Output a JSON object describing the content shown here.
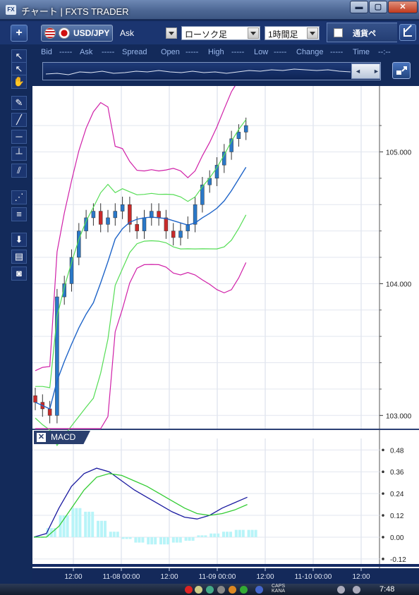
{
  "window": {
    "title": "チャート | FXTS TRADER",
    "app_icon": "FX",
    "min": "▬",
    "max": "▢",
    "close": "✕"
  },
  "toolbar": {
    "add_label": "+",
    "pair": "USD/JPY",
    "price_side": "Ask",
    "chart_type": "ローソク足",
    "interval": "1時間足",
    "currency_tab": "通貨ペ"
  },
  "quote": {
    "bid_label": "Bid",
    "bid": "-----",
    "ask_label": "Ask",
    "ask": "-----",
    "spread_label": "Spread",
    "open_label": "Open",
    "open": "-----",
    "high_label": "High",
    "high": "-----",
    "low_label": "Low",
    "low": "-----",
    "change_label": "Change",
    "change": "-----",
    "time_label": "Time",
    "time": "--:--"
  },
  "chart_data": [
    {
      "type": "candlestick",
      "title": "",
      "price_axis_ticks": [
        "105.000",
        "104.000",
        "103.000"
      ],
      "ylim": [
        102.9,
        105.5
      ],
      "time_axis_ticks": [
        "12:00",
        "11-08 00:00",
        "12:00",
        "11-09 00:00",
        "12:00",
        "11-10 00:00",
        "12:00"
      ],
      "overlays": [
        "bollinger_upper_2",
        "bollinger_upper_1",
        "moving_average",
        "bollinger_lower_1",
        "bollinger_lower_2"
      ],
      "close_approx": [
        103.1,
        103.05,
        103.0,
        103.9,
        104.0,
        104.2,
        104.4,
        104.5,
        104.55,
        104.45,
        104.5,
        104.55,
        104.6,
        104.45,
        104.4,
        104.5,
        104.55,
        104.5,
        104.4,
        104.35,
        104.4,
        104.45,
        104.6,
        104.75,
        104.8,
        104.9,
        105.0,
        105.1,
        105.15,
        105.2
      ]
    },
    {
      "type": "line",
      "title": "MACD",
      "yticks": [
        "0.48",
        "0.36",
        "0.24",
        "0.12",
        "0.00",
        "-0.12"
      ],
      "ylim": [
        -0.14,
        0.52
      ],
      "series": [
        {
          "name": "",
          "color": "#1a1aa0",
          "values": [
            0.0,
            0.02,
            0.16,
            0.28,
            0.35,
            0.38,
            0.36,
            0.31,
            0.26,
            0.22,
            0.18,
            0.14,
            0.11,
            0.1,
            0.12,
            0.16,
            0.19,
            0.22
          ]
        },
        {
          "name": "",
          "color": "#33cc33",
          "values": [
            0.0,
            0.0,
            0.06,
            0.16,
            0.26,
            0.33,
            0.35,
            0.34,
            0.31,
            0.28,
            0.24,
            0.2,
            0.16,
            0.13,
            0.12,
            0.13,
            0.15,
            0.18
          ]
        }
      ],
      "histogram": [
        0.0,
        0.05,
        0.12,
        0.16,
        0.14,
        0.09,
        0.03,
        -0.01,
        -0.03,
        -0.04,
        -0.04,
        -0.03,
        -0.02,
        0.01,
        0.02,
        0.03,
        0.04,
        0.04
      ]
    }
  ],
  "macd_panel": {
    "close": "✕",
    "label": "MACD"
  },
  "taskbar": {
    "caps": "CAPS",
    "kana": "KANA",
    "clock": "7:48"
  }
}
